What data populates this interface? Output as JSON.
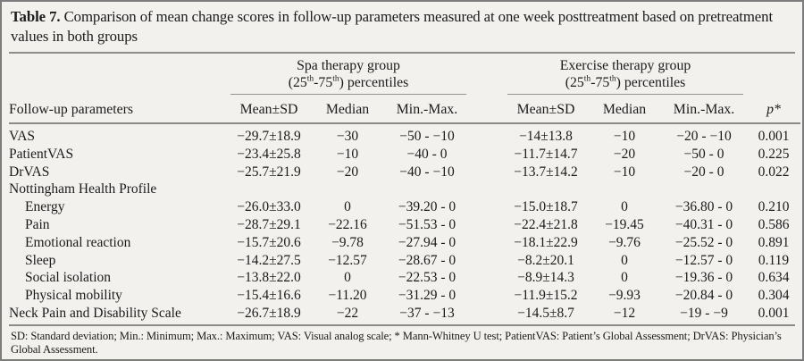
{
  "title": {
    "label": "Table 7.",
    "text": " Comparison of mean change scores in follow-up parameters measured at one week posttreatment based on pretreatment values in both groups"
  },
  "header": {
    "param_col": "Follow-up parameters",
    "p_col": "p*",
    "groups": [
      {
        "name": "Spa therapy group",
        "sub_p1": "(25",
        "sub_s1": "th",
        "sub_p2": "-75",
        "sub_s2": "th",
        "sub_p3": ") percentiles",
        "cols": [
          "Mean±SD",
          "Median",
          "Min.-Max."
        ]
      },
      {
        "name": "Exercise therapy group",
        "sub_p1": "(25",
        "sub_s1": "th",
        "sub_p2": "-75",
        "sub_s2": "th",
        "sub_p3": ") percentiles",
        "cols": [
          "Mean±SD",
          "Median",
          "Min.-Max."
        ]
      }
    ]
  },
  "rows": [
    {
      "param": "VAS",
      "spa_mean": "−29.7±18.9",
      "spa_median": "−30",
      "spa_minmax": "−50 - −10",
      "ex_mean": "−14±13.8",
      "ex_median": "−10",
      "ex_minmax": "−20 - −10",
      "p": "0.001"
    },
    {
      "param": "PatientVAS",
      "spa_mean": "−23.4±25.8",
      "spa_median": "−10",
      "spa_minmax": "−40 - 0",
      "ex_mean": "−11.7±14.7",
      "ex_median": "−20",
      "ex_minmax": "−50 - 0",
      "p": "0.225"
    },
    {
      "param": "DrVAS",
      "spa_mean": "−25.7±21.9",
      "spa_median": "−20",
      "spa_minmax": "−40 - −10",
      "ex_mean": "−13.7±14.2",
      "ex_median": "−10",
      "ex_minmax": "−20 - 0",
      "p": "0.022"
    },
    {
      "param": "Nottingham Health Profile",
      "spa_mean": "",
      "spa_median": "",
      "spa_minmax": "",
      "ex_mean": "",
      "ex_median": "",
      "ex_minmax": "",
      "p": ""
    },
    {
      "param": "Energy",
      "spa_mean": "−26.0±33.0",
      "spa_median": "0",
      "spa_minmax": "−39.20 - 0",
      "ex_mean": "−15.0±18.7",
      "ex_median": "0",
      "ex_minmax": "−36.80 - 0",
      "p": "0.210"
    },
    {
      "param": "Pain",
      "spa_mean": "−28.7±29.1",
      "spa_median": "−22.16",
      "spa_minmax": "−51.53 - 0",
      "ex_mean": "−22.4±21.8",
      "ex_median": "−19.45",
      "ex_minmax": "−40.31 - 0",
      "p": "0.586"
    },
    {
      "param": "Emotional reaction",
      "spa_mean": "−15.7±20.6",
      "spa_median": "−9.78",
      "spa_minmax": "−27.94 - 0",
      "ex_mean": "−18.1±22.9",
      "ex_median": "−9.76",
      "ex_minmax": "−25.52 - 0",
      "p": "0.891"
    },
    {
      "param": "Sleep",
      "spa_mean": "−14.2±27.5",
      "spa_median": "−12.57",
      "spa_minmax": "−28.67 - 0",
      "ex_mean": "−8.2±20.1",
      "ex_median": "0",
      "ex_minmax": "−12.57 - 0",
      "p": "0.119"
    },
    {
      "param": "Social isolation",
      "spa_mean": "−13.8±22.0",
      "spa_median": "0",
      "spa_minmax": "−22.53 - 0",
      "ex_mean": "−8.9±14.3",
      "ex_median": "0",
      "ex_minmax": "−19.36 - 0",
      "p": "0.634"
    },
    {
      "param": "Physical mobility",
      "spa_mean": "−15.4±16.6",
      "spa_median": "−11.20",
      "spa_minmax": "−31.29 - 0",
      "ex_mean": "−11.9±15.2",
      "ex_median": "−9.93",
      "ex_minmax": "−20.84 - 0",
      "p": "0.304"
    },
    {
      "param": "Neck Pain and Disability Scale",
      "spa_mean": "−26.7±18.9",
      "spa_median": "−22",
      "spa_minmax": "−37 - −13",
      "ex_mean": "−14.5±8.7",
      "ex_median": "−12",
      "ex_minmax": "−19 - −9",
      "p": "0.001"
    }
  ],
  "footer": "SD: Standard deviation; Min.: Minimum; Max.: Maximum; VAS: Visual analog scale; * Mann-Whitney U test; PatientVAS: Patient’s Global Assessment; DrVAS: Physician’s Global Assessment.",
  "colors": {
    "background": "#f2f1ee",
    "rule": "#8a8a8a",
    "text": "#1b1b1b"
  }
}
